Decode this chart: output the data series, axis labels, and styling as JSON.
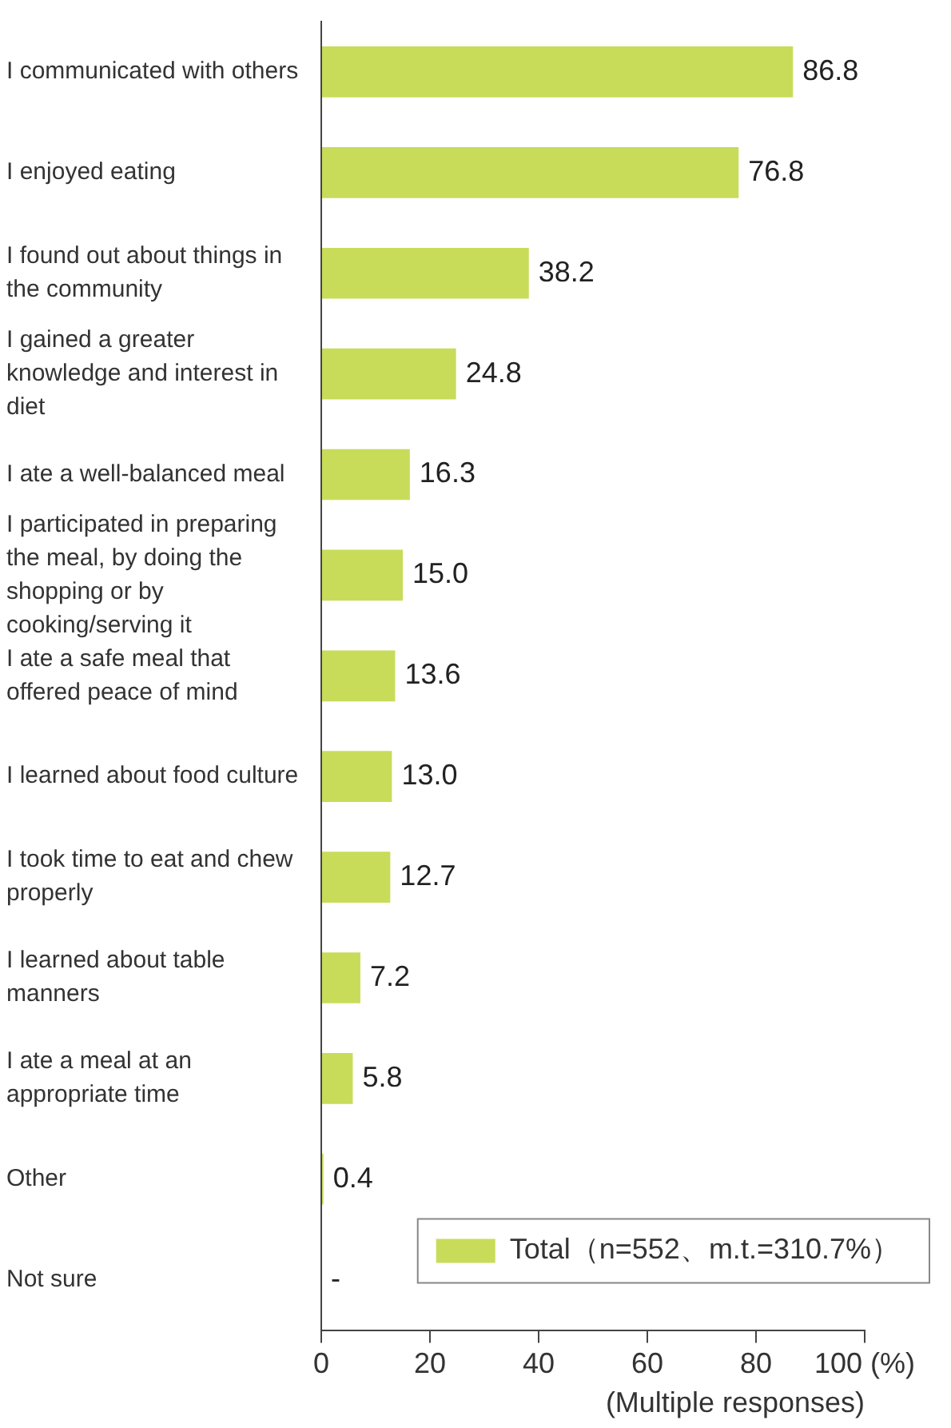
{
  "chart_data": {
    "type": "bar",
    "orientation": "horizontal",
    "categories": [
      "I communicated with others",
      "I enjoyed eating",
      "I found out about things in the community",
      "I gained a greater knowledge and interest in diet",
      "I ate a well-balanced meal",
      "I participated in preparing the meal, by doing the shopping or by cooking/serving it",
      "I ate a safe meal that offered peace of mind",
      "I learned about food culture",
      "I took time to eat and chew properly",
      "I learned about table manners",
      "I ate a meal at an appropriate time",
      "Other",
      "Not sure"
    ],
    "series": [
      {
        "name": "Total（n=552、m.t.=310.7%）",
        "color": "#c8dc5a",
        "values": [
          86.8,
          76.8,
          38.2,
          24.8,
          16.3,
          15.0,
          13.6,
          13.0,
          12.7,
          7.2,
          5.8,
          0.4,
          null
        ],
        "value_labels": [
          "86.8",
          "76.8",
          "38.2",
          "24.8",
          "16.3",
          "15.0",
          "13.6",
          "13.0",
          "12.7",
          "7.2",
          "5.8",
          "0.4",
          "-"
        ]
      }
    ],
    "xlim": [
      0,
      100
    ],
    "xticks": [
      0,
      20,
      40,
      60,
      80,
      {
        "value": 100,
        "label": "100 (%)"
      }
    ],
    "xlabel": "(Multiple responses)",
    "grid": false,
    "legend": "bottom right"
  }
}
